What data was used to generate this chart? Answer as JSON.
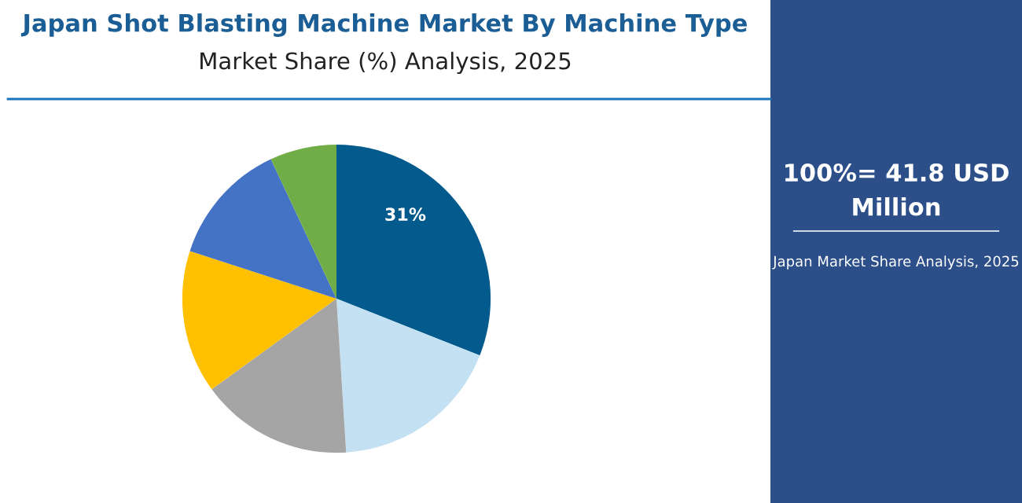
{
  "chart_data": {
    "type": "pie",
    "title": "Japan Shot Blasting Machine Market By Machine Type",
    "subtitle": "Market Share (%) Analysis, 2025",
    "categories": [
      null,
      null,
      null,
      null,
      null,
      null
    ],
    "values": [
      31,
      18,
      16,
      15,
      13,
      7
    ],
    "colors": [
      "#035a8c",
      "#c4e1f4",
      "#a5a5a5",
      "#ffc000",
      "#4472c4",
      "#70ad47"
    ],
    "value_labels": [
      "31%",
      null,
      null,
      null,
      null,
      null
    ],
    "annotations": [
      "100%= 41.8 USD Million",
      "Japan Market Share Analysis, 2025"
    ]
  }
}
